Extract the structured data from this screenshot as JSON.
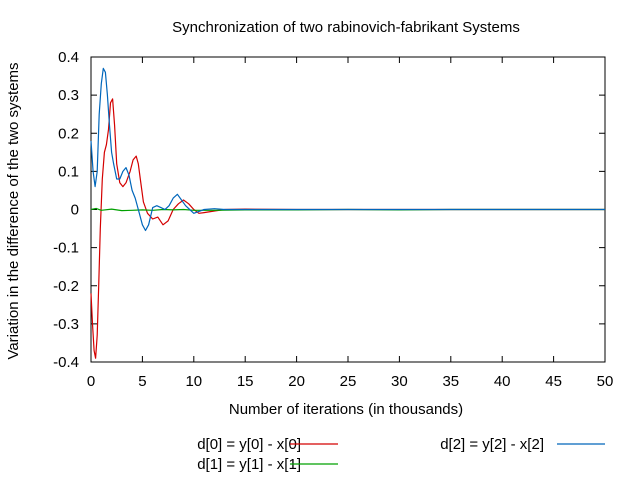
{
  "chart_data": {
    "type": "line",
    "title": "Synchronization of two rabinovich-fabrikant Systems",
    "xlabel": "Number of iterations (in thousands)",
    "ylabel": "Variation in the difference of the two systems",
    "xlim": [
      0,
      50
    ],
    "ylim": [
      -0.4,
      0.4
    ],
    "xticks": [
      "0",
      "5",
      "10",
      "15",
      "20",
      "25",
      "30",
      "35",
      "40",
      "45",
      "50"
    ],
    "yticks": [
      "-0.4",
      "-0.3",
      "-0.2",
      "-0.1",
      "0",
      "0.1",
      "0.2",
      "0.3",
      "0.4"
    ],
    "grid": false,
    "legend_position": "bottom",
    "series": [
      {
        "name": "d[0] = y[0] - x[0]",
        "color": "#d40000",
        "x": [
          0,
          0.15,
          0.3,
          0.45,
          0.6,
          0.75,
          0.9,
          1.1,
          1.3,
          1.5,
          1.7,
          1.9,
          2.1,
          2.3,
          2.5,
          2.8,
          3.1,
          3.4,
          3.8,
          4.1,
          4.4,
          4.6,
          4.8,
          5.1,
          5.5,
          6.0,
          6.5,
          7.0,
          7.5,
          8.0,
          8.5,
          9.0,
          9.5,
          10.0,
          10.5,
          11.0,
          12.0,
          13.0,
          15.0,
          20.0,
          25.0,
          30.0,
          35.0,
          40.0,
          45.0,
          50.0
        ],
        "y": [
          -0.22,
          -0.3,
          -0.37,
          -0.39,
          -0.33,
          -0.2,
          -0.05,
          0.08,
          0.15,
          0.17,
          0.21,
          0.28,
          0.29,
          0.22,
          0.12,
          0.07,
          0.06,
          0.07,
          0.1,
          0.13,
          0.14,
          0.12,
          0.08,
          0.02,
          -0.01,
          -0.025,
          -0.02,
          -0.04,
          -0.03,
          0.0,
          0.015,
          0.025,
          0.015,
          0.0,
          -0.01,
          -0.008,
          -0.004,
          0.0,
          0.001,
          0.0,
          0.0,
          0.0,
          0.0,
          0.0,
          0.0,
          0.0
        ]
      },
      {
        "name": "d[1] = y[1] - x[1]",
        "color": "#00a000",
        "x": [
          0,
          0.5,
          1.0,
          2.0,
          3.0,
          4.0,
          5.0,
          6.0,
          7.0,
          8.0,
          9.0,
          10.0,
          12.0,
          15.0,
          20.0,
          25.0,
          30.0,
          35.0,
          40.0,
          45.0,
          50.0
        ],
        "y": [
          0.0,
          0.003,
          -0.002,
          0.001,
          -0.003,
          -0.002,
          -0.001,
          -0.002,
          0.0,
          -0.001,
          0.0,
          -0.002,
          -0.002,
          -0.001,
          -0.001,
          0.0,
          -0.001,
          0.0,
          0.0,
          0.0,
          0.0
        ]
      },
      {
        "name": "d[2] = y[2] - x[2]",
        "color": "#0066bb",
        "x": [
          0,
          0.2,
          0.4,
          0.6,
          0.8,
          1.0,
          1.2,
          1.4,
          1.6,
          1.8,
          2.0,
          2.2,
          2.5,
          2.8,
          3.1,
          3.4,
          3.7,
          4.0,
          4.3,
          4.6,
          5.0,
          5.3,
          5.6,
          6.0,
          6.4,
          6.8,
          7.2,
          7.6,
          8.0,
          8.4,
          8.8,
          9.2,
          9.6,
          10.0,
          10.5,
          11.0,
          12.0,
          13.0,
          15.0,
          20.0,
          25.0,
          30.0,
          35.0,
          40.0,
          45.0,
          50.0
        ],
        "y": [
          0.18,
          0.1,
          0.06,
          0.1,
          0.25,
          0.33,
          0.37,
          0.36,
          0.3,
          0.22,
          0.15,
          0.12,
          0.08,
          0.08,
          0.1,
          0.11,
          0.09,
          0.05,
          0.03,
          0.0,
          -0.04,
          -0.055,
          -0.04,
          0.005,
          0.01,
          0.005,
          0.0,
          0.01,
          0.03,
          0.04,
          0.025,
          0.01,
          0.0,
          -0.01,
          -0.005,
          0.0,
          0.002,
          0.0,
          0.0,
          0.0,
          0.0,
          0.0,
          0.0,
          0.0,
          0.0,
          0.0
        ]
      }
    ]
  }
}
